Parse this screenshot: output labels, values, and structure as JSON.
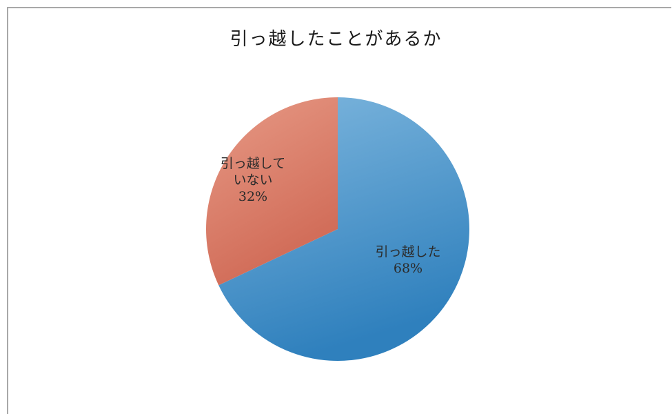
{
  "chart_data": {
    "type": "pie",
    "title": "引っ越したことがあるか",
    "slices": [
      {
        "label": "引っ越した",
        "value": 68,
        "value_label": "68%",
        "color": "#4a93c9"
      },
      {
        "label_lines": [
          "引っ越して",
          "いない"
        ],
        "value": 32,
        "value_label": "32%",
        "color": "#d6735f"
      }
    ],
    "start_angle_deg": 0,
    "direction": "clockwise"
  }
}
